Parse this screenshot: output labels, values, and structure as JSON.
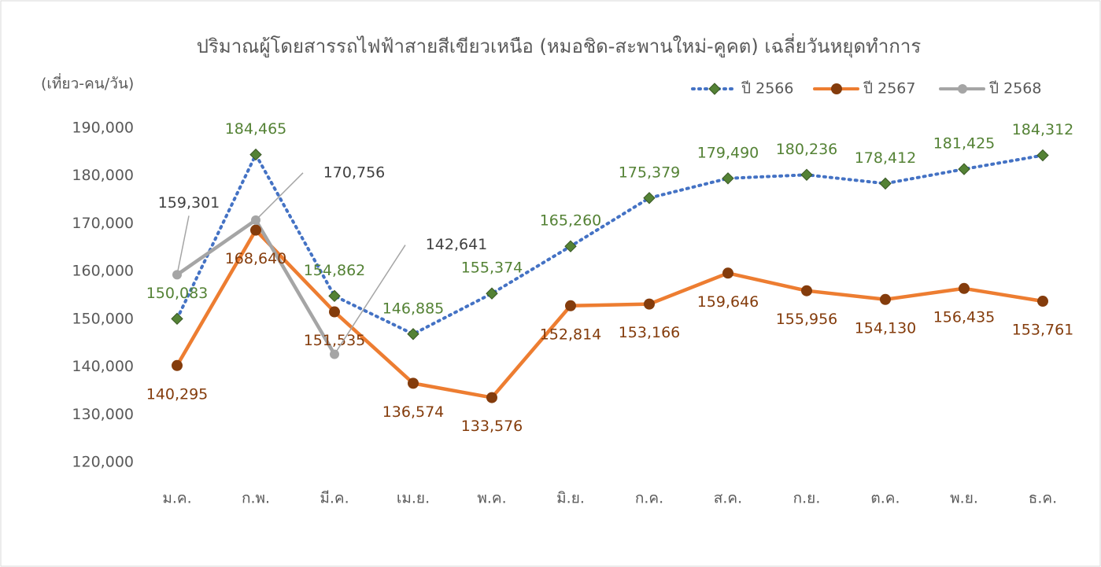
{
  "chart_data": {
    "type": "line",
    "title": "ปริมาณผู้โดยสารรถไฟฟ้าสายสีเขียวเหนือ (หมอชิด-สะพานใหม่-คูคต) เฉลี่ยวันหยุดทำการ",
    "y_label": "(เที่ยว-คน/วัน)",
    "categories": [
      "ม.ค.",
      "ก.พ.",
      "มี.ค.",
      "เม.ย.",
      "พ.ค.",
      "มิ.ย.",
      "ก.ค.",
      "ส.ค.",
      "ก.ย.",
      "ต.ค.",
      "พ.ย.",
      "ธ.ค."
    ],
    "series": [
      {
        "name": "ปี 2566",
        "color": "#4472c4",
        "marker_color": "#548235",
        "dash": "dotted",
        "values": [
          150083,
          184465,
          154862,
          146885,
          155374,
          165260,
          175379,
          179490,
          180236,
          178412,
          181425,
          184312
        ],
        "value_labels": [
          "150,083",
          "184,465",
          "154,862",
          "146,885",
          "155,374",
          "165,260",
          "175,379",
          "179,490",
          "180,236",
          "178,412",
          "181,425",
          "184,312"
        ]
      },
      {
        "name": "ปี 2567",
        "color": "#ed7d31",
        "marker_color": "#843c0c",
        "dash": "solid",
        "values": [
          140295,
          168640,
          151535,
          136574,
          133576,
          152814,
          153166,
          159646,
          155956,
          154130,
          156435,
          153761
        ],
        "value_labels": [
          "140,295",
          "168,640",
          "151,535",
          "136,574",
          "133,576",
          "152,814",
          "153,166",
          "159,646",
          "155,956",
          "154,130",
          "156,435",
          "153,761"
        ]
      },
      {
        "name": "ปี 2568",
        "color": "#a5a5a5",
        "marker_color": "#a5a5a5",
        "dash": "solid",
        "values": [
          159301,
          170756,
          142641,
          null,
          null,
          null,
          null,
          null,
          null,
          null,
          null,
          null
        ],
        "value_labels": [
          "159,301",
          "170,756",
          "142,641",
          null,
          null,
          null,
          null,
          null,
          null,
          null,
          null,
          null
        ]
      }
    ],
    "ylim": [
      120000,
      190000
    ],
    "yticks": [
      {
        "value": 120000,
        "label": "120,000"
      },
      {
        "value": 130000,
        "label": "130,000"
      },
      {
        "value": 140000,
        "label": "140,000"
      },
      {
        "value": 150000,
        "label": "150,000"
      },
      {
        "value": 160000,
        "label": "160,000"
      },
      {
        "value": 170000,
        "label": "170,000"
      },
      {
        "value": 180000,
        "label": "180,000"
      },
      {
        "value": 190000,
        "label": "190,000"
      }
    ],
    "grid": false,
    "legend": "top-right"
  }
}
